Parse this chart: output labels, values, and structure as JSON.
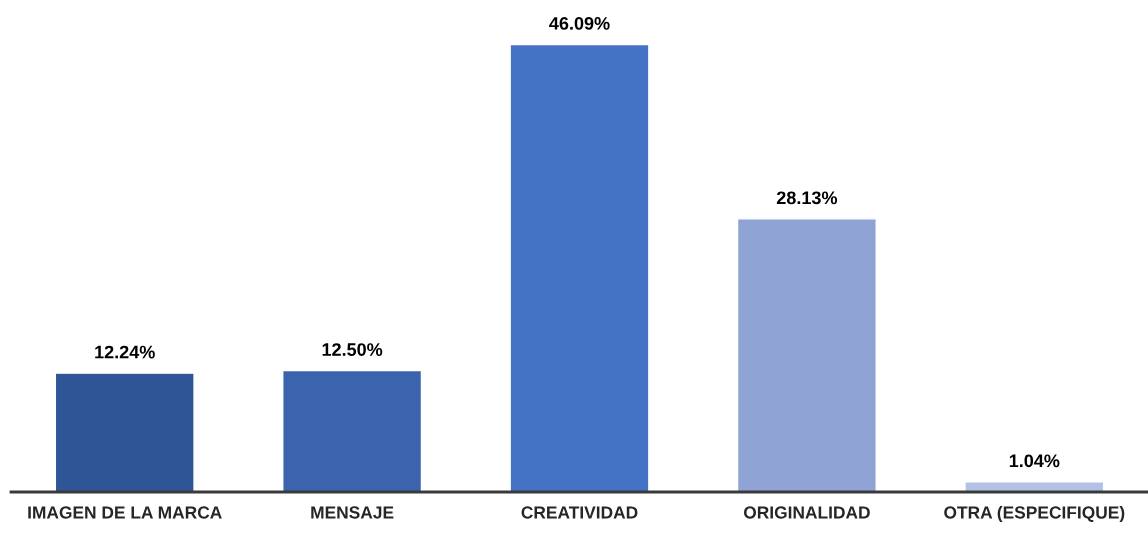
{
  "chart_data": {
    "type": "bar",
    "categories": [
      "IMAGEN DE LA MARCA",
      "MENSAJE",
      "CREATIVIDAD",
      "ORIGINALIDAD",
      "OTRA (ESPECIFIQUE)"
    ],
    "values": [
      12.24,
      12.5,
      46.09,
      28.13,
      1.04
    ],
    "value_labels": [
      "12.24%",
      "12.50%",
      "46.09%",
      "28.13%",
      "1.04%"
    ],
    "colors": [
      "#2f5597",
      "#3c64ae",
      "#4472c4",
      "#8fa3d4",
      "#b4c1e6"
    ],
    "grid": false,
    "legend": false
  }
}
